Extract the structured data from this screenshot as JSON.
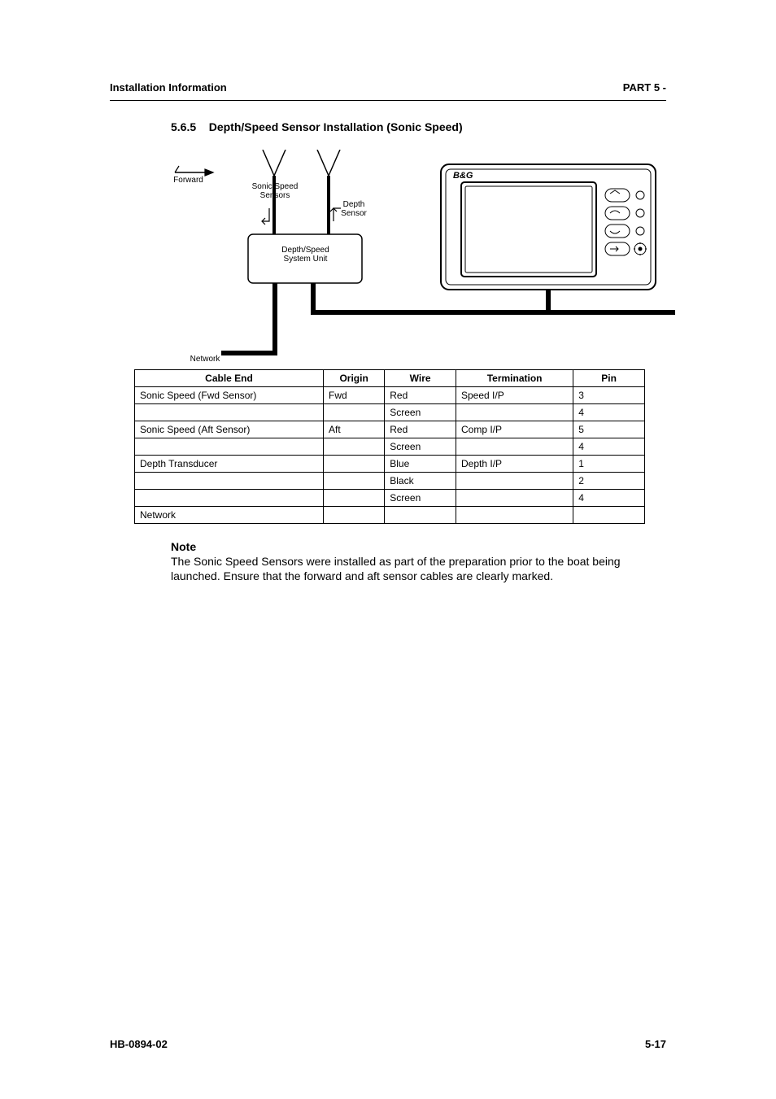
{
  "header": {
    "left": "Installation Information",
    "right": "PART 5 -"
  },
  "section": {
    "number": "5.6.5",
    "title": "Depth/Speed Sensor Installation (Sonic Speed)"
  },
  "labels": {
    "sonic_speed_sensors": "Sonic Speed\nSensors",
    "forward_arrow": "Forward",
    "system_unit": "Depth/Speed\nSystem Unit",
    "depth_sensor": "Depth\nSensor",
    "network": "Network"
  },
  "display": {
    "brand": "B&G"
  },
  "table": {
    "columns": [
      "Cable End",
      "Origin",
      "Wire",
      "Termination",
      "Pin"
    ],
    "rows": [
      [
        "Sonic Speed (Fwd Sensor)",
        "Fwd",
        "Red",
        "Speed I/P",
        "3"
      ],
      [
        "",
        "",
        "Screen",
        "",
        "4"
      ],
      [
        "Sonic Speed (Aft Sensor)",
        "Aft",
        "Red",
        "Comp I/P",
        "5"
      ],
      [
        "",
        "",
        "Screen",
        "",
        "4"
      ],
      [
        "Depth Transducer",
        "",
        "Blue",
        "Depth I/P",
        "1"
      ],
      [
        "",
        "",
        "Black",
        "",
        "2"
      ],
      [
        "",
        "",
        "Screen",
        "",
        "4"
      ],
      [
        "Network",
        "",
        "",
        "",
        ""
      ]
    ]
  },
  "note": {
    "label": "Note",
    "body": "The Sonic Speed Sensors were installed as part of the preparation prior to the boat being launched. Ensure that the forward and aft sensor cables are clearly marked."
  },
  "footer": {
    "left": "HB-0894-02",
    "right": "5-17"
  },
  "style": {
    "page_bg": "#ffffff",
    "line_color": "#000000",
    "table_border": "#000000",
    "font_family": "Arial, Helvetica, sans-serif",
    "header_fontsize": 13,
    "section_fontsize": 14,
    "table_fontsize": 12,
    "label_fontsize": 10
  }
}
